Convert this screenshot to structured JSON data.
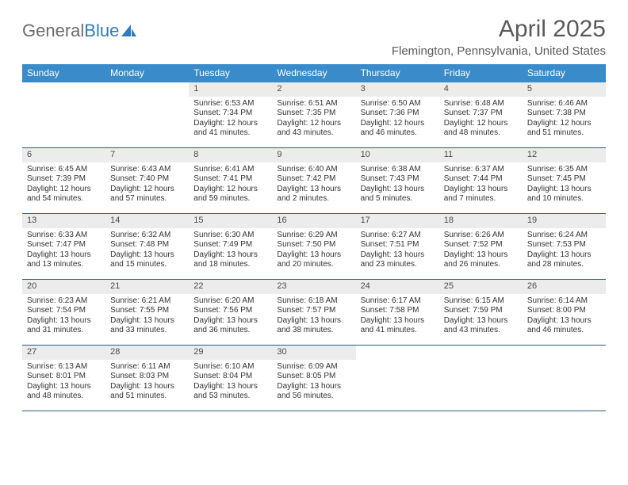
{
  "logo": {
    "text_part1": "General",
    "text_part2": "Blue"
  },
  "title": "April 2025",
  "subtitle": "Flemington, Pennsylvania, United States",
  "colors": {
    "header_bg": "#3a8bc9",
    "header_text": "#ffffff",
    "daynum_bg": "#ececec",
    "week_divider": "#2c5a86",
    "title_color": "#5a5a5a",
    "logo_gray": "#6b6b6b",
    "logo_blue": "#2f7bbf"
  },
  "day_names": [
    "Sunday",
    "Monday",
    "Tuesday",
    "Wednesday",
    "Thursday",
    "Friday",
    "Saturday"
  ],
  "weeks": [
    [
      null,
      null,
      {
        "n": "1",
        "sr": "Sunrise: 6:53 AM",
        "ss": "Sunset: 7:34 PM",
        "dl": "Daylight: 12 hours and 41 minutes."
      },
      {
        "n": "2",
        "sr": "Sunrise: 6:51 AM",
        "ss": "Sunset: 7:35 PM",
        "dl": "Daylight: 12 hours and 43 minutes."
      },
      {
        "n": "3",
        "sr": "Sunrise: 6:50 AM",
        "ss": "Sunset: 7:36 PM",
        "dl": "Daylight: 12 hours and 46 minutes."
      },
      {
        "n": "4",
        "sr": "Sunrise: 6:48 AM",
        "ss": "Sunset: 7:37 PM",
        "dl": "Daylight: 12 hours and 48 minutes."
      },
      {
        "n": "5",
        "sr": "Sunrise: 6:46 AM",
        "ss": "Sunset: 7:38 PM",
        "dl": "Daylight: 12 hours and 51 minutes."
      }
    ],
    [
      {
        "n": "6",
        "sr": "Sunrise: 6:45 AM",
        "ss": "Sunset: 7:39 PM",
        "dl": "Daylight: 12 hours and 54 minutes."
      },
      {
        "n": "7",
        "sr": "Sunrise: 6:43 AM",
        "ss": "Sunset: 7:40 PM",
        "dl": "Daylight: 12 hours and 57 minutes."
      },
      {
        "n": "8",
        "sr": "Sunrise: 6:41 AM",
        "ss": "Sunset: 7:41 PM",
        "dl": "Daylight: 12 hours and 59 minutes."
      },
      {
        "n": "9",
        "sr": "Sunrise: 6:40 AM",
        "ss": "Sunset: 7:42 PM",
        "dl": "Daylight: 13 hours and 2 minutes."
      },
      {
        "n": "10",
        "sr": "Sunrise: 6:38 AM",
        "ss": "Sunset: 7:43 PM",
        "dl": "Daylight: 13 hours and 5 minutes."
      },
      {
        "n": "11",
        "sr": "Sunrise: 6:37 AM",
        "ss": "Sunset: 7:44 PM",
        "dl": "Daylight: 13 hours and 7 minutes."
      },
      {
        "n": "12",
        "sr": "Sunrise: 6:35 AM",
        "ss": "Sunset: 7:45 PM",
        "dl": "Daylight: 13 hours and 10 minutes."
      }
    ],
    [
      {
        "n": "13",
        "sr": "Sunrise: 6:33 AM",
        "ss": "Sunset: 7:47 PM",
        "dl": "Daylight: 13 hours and 13 minutes."
      },
      {
        "n": "14",
        "sr": "Sunrise: 6:32 AM",
        "ss": "Sunset: 7:48 PM",
        "dl": "Daylight: 13 hours and 15 minutes."
      },
      {
        "n": "15",
        "sr": "Sunrise: 6:30 AM",
        "ss": "Sunset: 7:49 PM",
        "dl": "Daylight: 13 hours and 18 minutes."
      },
      {
        "n": "16",
        "sr": "Sunrise: 6:29 AM",
        "ss": "Sunset: 7:50 PM",
        "dl": "Daylight: 13 hours and 20 minutes."
      },
      {
        "n": "17",
        "sr": "Sunrise: 6:27 AM",
        "ss": "Sunset: 7:51 PM",
        "dl": "Daylight: 13 hours and 23 minutes."
      },
      {
        "n": "18",
        "sr": "Sunrise: 6:26 AM",
        "ss": "Sunset: 7:52 PM",
        "dl": "Daylight: 13 hours and 26 minutes."
      },
      {
        "n": "19",
        "sr": "Sunrise: 6:24 AM",
        "ss": "Sunset: 7:53 PM",
        "dl": "Daylight: 13 hours and 28 minutes."
      }
    ],
    [
      {
        "n": "20",
        "sr": "Sunrise: 6:23 AM",
        "ss": "Sunset: 7:54 PM",
        "dl": "Daylight: 13 hours and 31 minutes."
      },
      {
        "n": "21",
        "sr": "Sunrise: 6:21 AM",
        "ss": "Sunset: 7:55 PM",
        "dl": "Daylight: 13 hours and 33 minutes."
      },
      {
        "n": "22",
        "sr": "Sunrise: 6:20 AM",
        "ss": "Sunset: 7:56 PM",
        "dl": "Daylight: 13 hours and 36 minutes."
      },
      {
        "n": "23",
        "sr": "Sunrise: 6:18 AM",
        "ss": "Sunset: 7:57 PM",
        "dl": "Daylight: 13 hours and 38 minutes."
      },
      {
        "n": "24",
        "sr": "Sunrise: 6:17 AM",
        "ss": "Sunset: 7:58 PM",
        "dl": "Daylight: 13 hours and 41 minutes."
      },
      {
        "n": "25",
        "sr": "Sunrise: 6:15 AM",
        "ss": "Sunset: 7:59 PM",
        "dl": "Daylight: 13 hours and 43 minutes."
      },
      {
        "n": "26",
        "sr": "Sunrise: 6:14 AM",
        "ss": "Sunset: 8:00 PM",
        "dl": "Daylight: 13 hours and 46 minutes."
      }
    ],
    [
      {
        "n": "27",
        "sr": "Sunrise: 6:13 AM",
        "ss": "Sunset: 8:01 PM",
        "dl": "Daylight: 13 hours and 48 minutes."
      },
      {
        "n": "28",
        "sr": "Sunrise: 6:11 AM",
        "ss": "Sunset: 8:03 PM",
        "dl": "Daylight: 13 hours and 51 minutes."
      },
      {
        "n": "29",
        "sr": "Sunrise: 6:10 AM",
        "ss": "Sunset: 8:04 PM",
        "dl": "Daylight: 13 hours and 53 minutes."
      },
      {
        "n": "30",
        "sr": "Sunrise: 6:09 AM",
        "ss": "Sunset: 8:05 PM",
        "dl": "Daylight: 13 hours and 56 minutes."
      },
      null,
      null,
      null
    ]
  ]
}
